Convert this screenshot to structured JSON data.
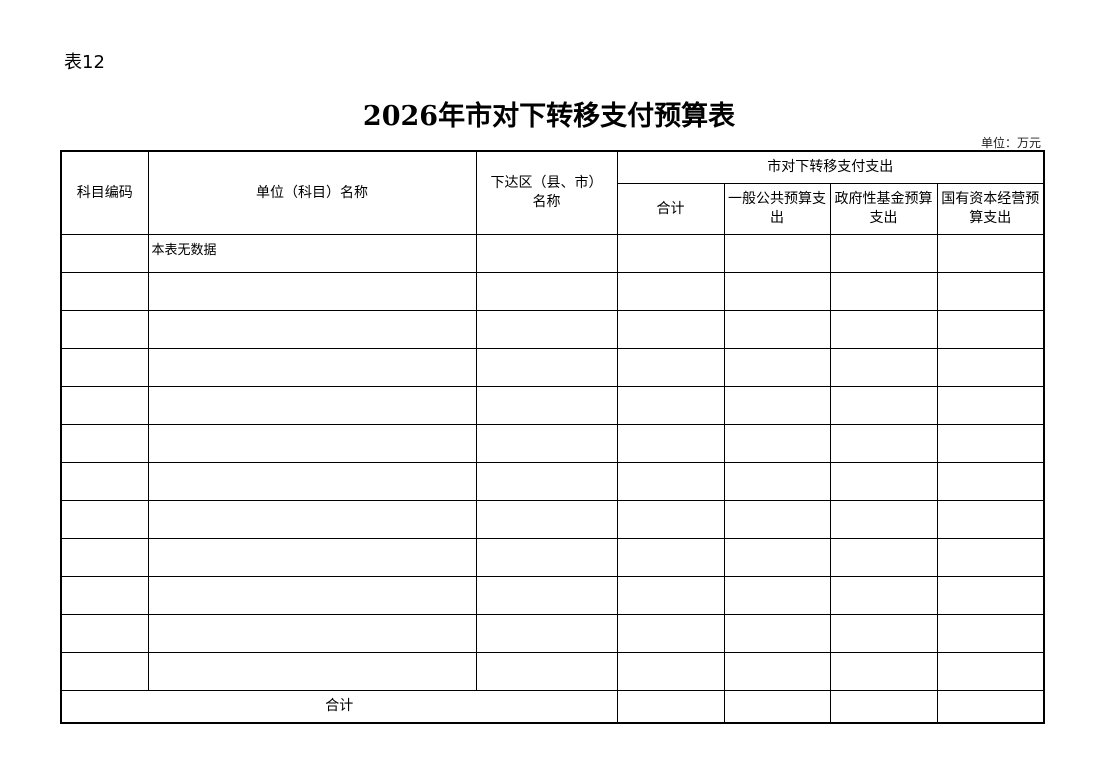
{
  "table_no": "表12",
  "title": "2026年市对下转移支付预算表",
  "unit": "单位：万元",
  "headers": {
    "code": "科目编码",
    "name": "单位（科目）名称",
    "region": "下达区（县、市）名称",
    "group": "市对下转移支付支出",
    "total": "合计",
    "general": "一般公共预算支出",
    "fund": "政府性基金预算支出",
    "state_capital": "国有资本经营预算支出"
  },
  "rows": [
    [
      "",
      "本表无数据",
      "",
      "",
      "",
      "",
      ""
    ],
    [
      "",
      "",
      "",
      "",
      "",
      "",
      ""
    ],
    [
      "",
      "",
      "",
      "",
      "",
      "",
      ""
    ],
    [
      "",
      "",
      "",
      "",
      "",
      "",
      ""
    ],
    [
      "",
      "",
      "",
      "",
      "",
      "",
      ""
    ],
    [
      "",
      "",
      "",
      "",
      "",
      "",
      ""
    ],
    [
      "",
      "",
      "",
      "",
      "",
      "",
      ""
    ],
    [
      "",
      "",
      "",
      "",
      "",
      "",
      ""
    ],
    [
      "",
      "",
      "",
      "",
      "",
      "",
      ""
    ],
    [
      "",
      "",
      "",
      "",
      "",
      "",
      ""
    ],
    [
      "",
      "",
      "",
      "",
      "",
      "",
      ""
    ],
    [
      "",
      "",
      "",
      "",
      "",
      "",
      ""
    ]
  ],
  "footer": {
    "label": "合计",
    "values": [
      "",
      "",
      "",
      ""
    ]
  }
}
